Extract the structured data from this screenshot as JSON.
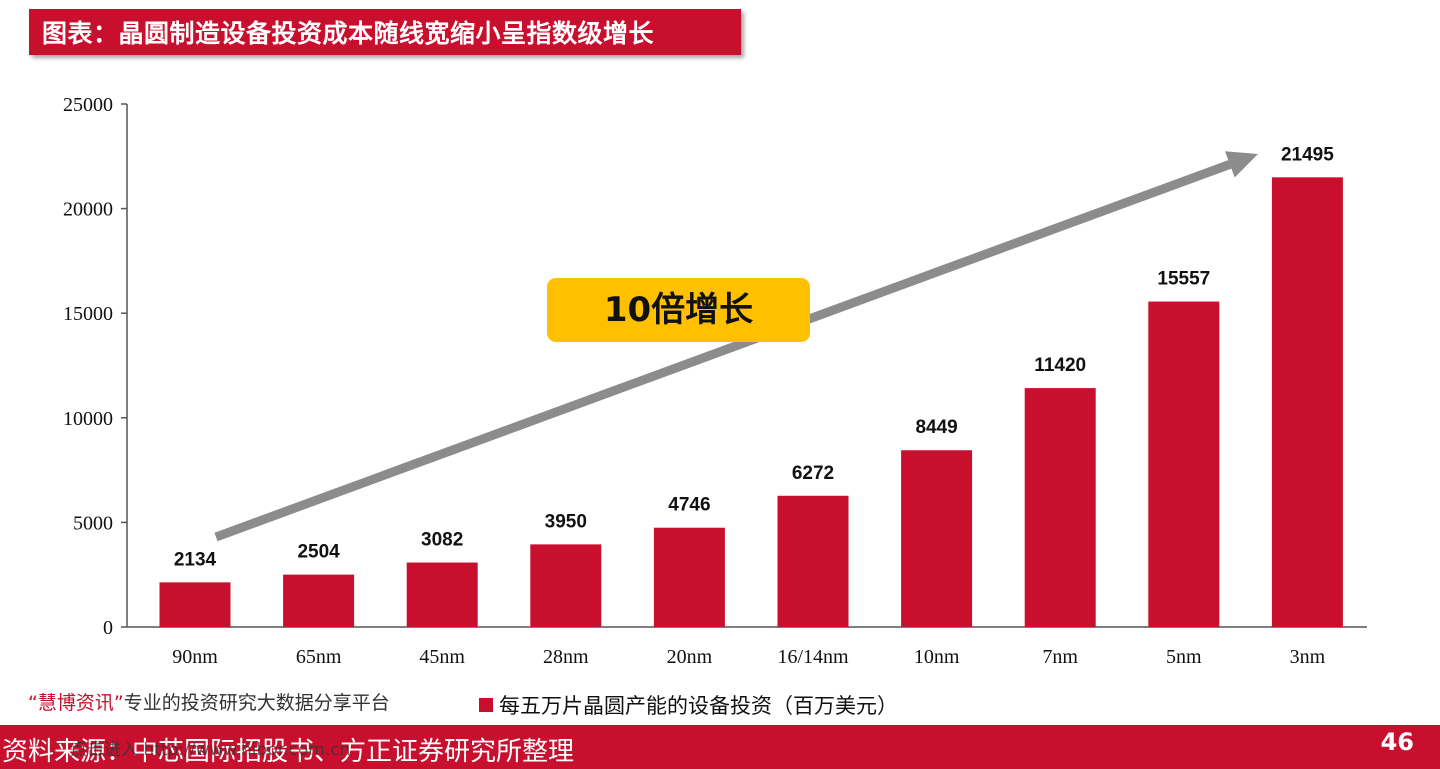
{
  "header": {
    "title": "图表：晶圆制造设备投资成本随线宽缩小呈指数级增长"
  },
  "annotation": {
    "badge": "10倍增长"
  },
  "legend": {
    "label": "每五万片晶圆产能的设备投资（百万美元）"
  },
  "promo": {
    "brand": "“慧博资讯”",
    "text": "专业的投资研究大数据分享平台"
  },
  "watermark": {
    "text": "点击进入 http://www.hibor.com.cn"
  },
  "footer": {
    "source": "资料来源：中芯国际招股书、方正证券研究所整理",
    "page": "46"
  },
  "colors": {
    "bar": "#c8102e",
    "arrow": "#8c8c8c",
    "badge": "#ffc000"
  },
  "chart_data": {
    "type": "bar",
    "title": "",
    "categories": [
      "90nm",
      "65nm",
      "45nm",
      "28nm",
      "20nm",
      "16/14nm",
      "10nm",
      "7nm",
      "5nm",
      "3nm"
    ],
    "series": [
      {
        "name": "每五万片晶圆产能的设备投资（百万美元）",
        "values": [
          2134,
          2504,
          3082,
          3950,
          4746,
          6272,
          8449,
          11420,
          15557,
          21495
        ]
      }
    ],
    "ylim": [
      0,
      25000
    ],
    "yticks": [
      0,
      5000,
      10000,
      15000,
      20000,
      25000
    ],
    "grid": false,
    "legend_position": "bottom"
  }
}
